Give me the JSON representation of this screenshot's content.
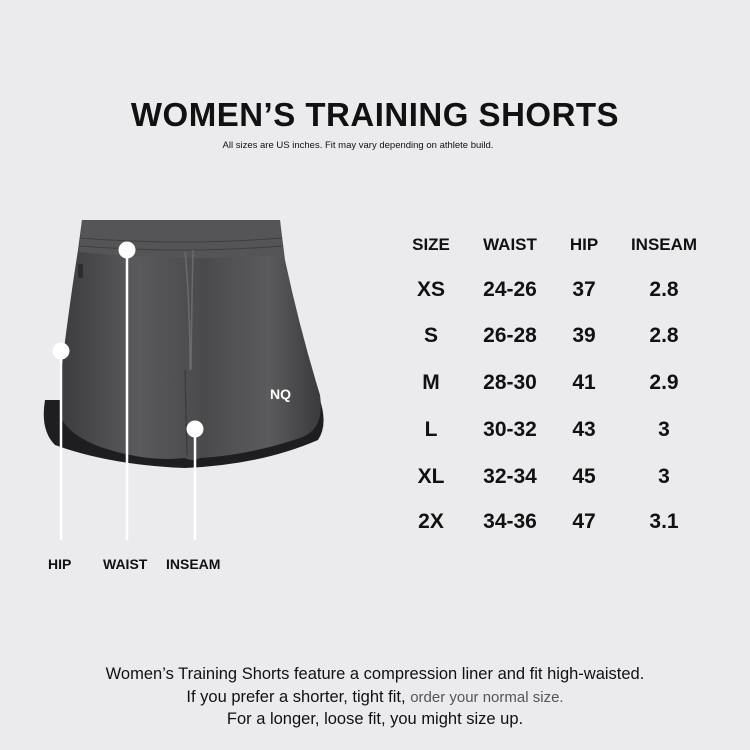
{
  "title": "WOMEN’S TRAINING SHORTS",
  "subtitle": "All sizes are US inches. Fit may vary depending on athlete build.",
  "diagram": {
    "labels": {
      "hip": "HIP",
      "waist": "WAIST",
      "inseam": "INSEAM"
    },
    "logo_text": "NQ",
    "garment_color": "#4a4a4c"
  },
  "size_table": {
    "headers": [
      "SIZE",
      "WAIST",
      "HIP",
      "INSEAM"
    ],
    "rows": [
      [
        "XS",
        "24-26",
        "37",
        "2.8"
      ],
      [
        "S",
        "26-28",
        "39",
        "2.8"
      ],
      [
        "M",
        "28-30",
        "41",
        "2.9"
      ],
      [
        "L",
        "30-32",
        "43",
        "3"
      ],
      [
        "XL",
        "32-34",
        "45",
        "3"
      ],
      [
        "2X",
        "34-36",
        "47",
        "3.1"
      ]
    ]
  },
  "footer": {
    "line1": "Women’s Training Shorts feature a compression liner and fit high-waisted.",
    "line2a": "If you prefer a shorter, tight fit,",
    "line2b": "order your normal size.",
    "line3": "For a longer, loose fit, you might size up."
  }
}
